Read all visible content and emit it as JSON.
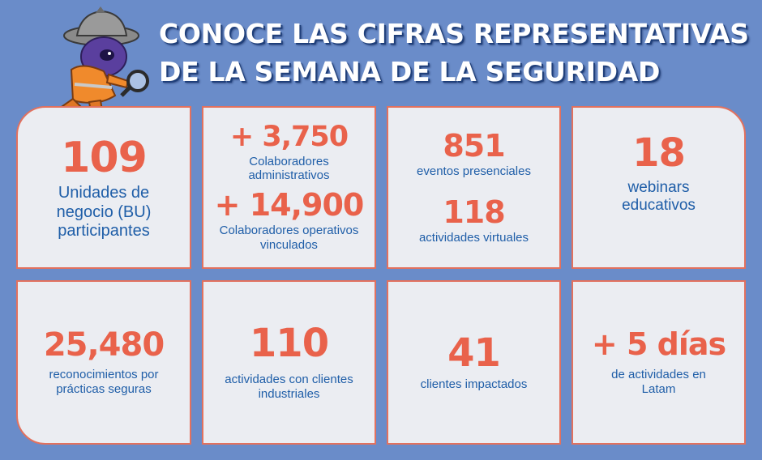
{
  "header": {
    "title_line1": "CONOCE LAS CIFRAS REPRESENTATIVAS",
    "title_line2": "DE LA SEMANA DE LA SEGURIDAD"
  },
  "colors": {
    "background": "#6a8cc9",
    "card": "#ebedf2",
    "card_border": "#e2715e",
    "number": "#e9624b",
    "label": "#1f5ea8"
  },
  "cards": {
    "bu": {
      "value": "109",
      "label": "Unidades de negocio (BU) participantes"
    },
    "colaboradores": {
      "admin_value": "+ 3,750",
      "admin_label": "Colaboradores administrativos",
      "oper_value": "+ 14,900",
      "oper_label": "Colaboradores operativos vinculados"
    },
    "eventos": {
      "presencial_value": "851",
      "presencial_label": "eventos presenciales",
      "virtual_value": "118",
      "virtual_label": "actividades virtuales"
    },
    "webinars": {
      "value": "18",
      "label": "webinars educativos"
    },
    "reconocimientos": {
      "value": "25,480",
      "label": "reconocimientos por prácticas seguras"
    },
    "industriales": {
      "value": "110",
      "label": "actividades con clientes industriales"
    },
    "clientes": {
      "value": "41",
      "label": "clientes impactados"
    },
    "dias": {
      "value": "+ 5 días",
      "label": "de actividades en Latam"
    }
  }
}
